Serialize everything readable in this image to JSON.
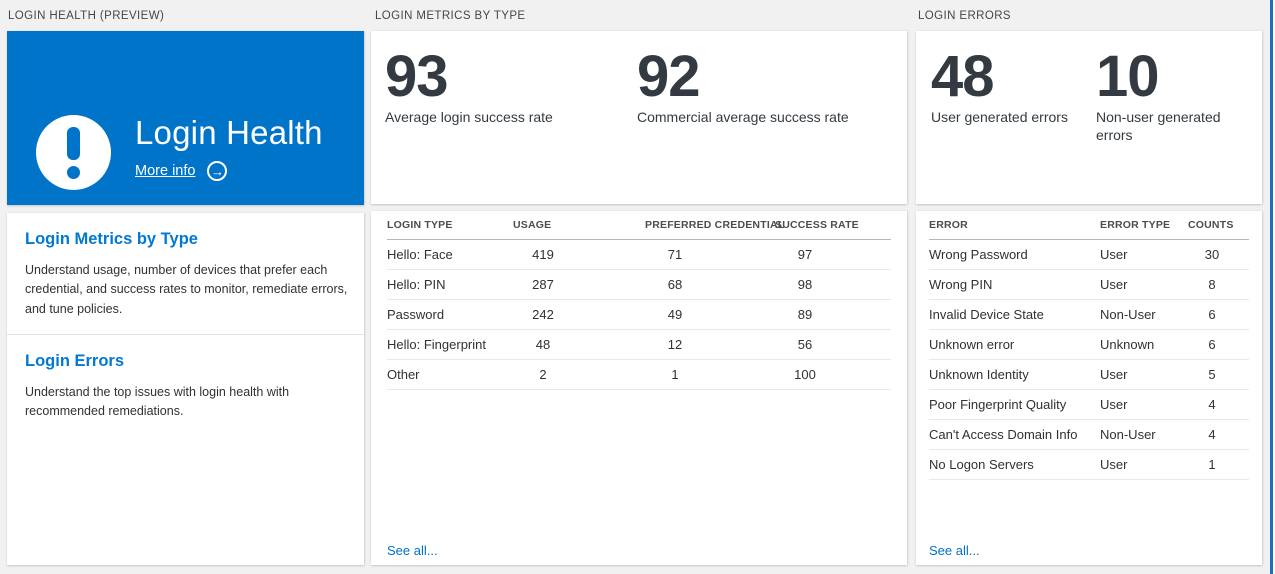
{
  "colors": {
    "page_background": "#f1f1f1",
    "hero_tile_blue": "#0074c9",
    "accent_blue": "#0078d4",
    "link_blue": "#0072c6",
    "blade_edge_blue": "#1e6fbd",
    "big_number_color": "#333a41"
  },
  "icons": {
    "hero": "exclamation-icon",
    "more_info_arrow": "arrow-right-circle-icon"
  },
  "health": {
    "header": "LOGIN HEALTH (PREVIEW)",
    "hero": {
      "title": "Login Health",
      "more_info_label": "More info",
      "arrow_glyph": "→"
    },
    "sections": [
      {
        "title": "Login Metrics by Type",
        "description": "Understand usage, number of devices that prefer each credential, and success rates to monitor, remediate errors, and tune policies."
      },
      {
        "title": "Login Errors",
        "description": "Understand the top issues with login health with recommended remediations."
      }
    ]
  },
  "metrics": {
    "header": "LOGIN METRICS BY TYPE",
    "stats": [
      {
        "value": "93",
        "label": "Average login success rate"
      },
      {
        "value": "92",
        "label": "Commercial average success rate"
      }
    ],
    "table": {
      "columns": [
        "LOGIN TYPE",
        "USAGE",
        "PREFERRED CREDENTIAL",
        "SUCCESS RATE"
      ],
      "rows": [
        [
          "Hello: Face",
          "419",
          "71",
          "97"
        ],
        [
          "Hello: PIN",
          "287",
          "68",
          "98"
        ],
        [
          "Password",
          "242",
          "49",
          "89"
        ],
        [
          "Hello: Fingerprint",
          "48",
          "12",
          "56"
        ],
        [
          "Other",
          "2",
          "1",
          "100"
        ]
      ]
    },
    "see_all_label": "See all..."
  },
  "errors": {
    "header": "LOGIN ERRORS",
    "stats": [
      {
        "value": "48",
        "label": "User generated errors"
      },
      {
        "value": "10",
        "label": "Non-user generated errors"
      }
    ],
    "table": {
      "columns": [
        "ERROR",
        "ERROR TYPE",
        "COUNTS"
      ],
      "rows": [
        [
          "Wrong Password",
          "User",
          "30"
        ],
        [
          "Wrong PIN",
          "User",
          "8"
        ],
        [
          "Invalid Device State",
          "Non-User",
          "6"
        ],
        [
          "Unknown error",
          "Unknown",
          "6"
        ],
        [
          "Unknown Identity",
          "User",
          "5"
        ],
        [
          "Poor Fingerprint Quality",
          "User",
          "4"
        ],
        [
          "Can't Access Domain Info",
          "Non-User",
          "4"
        ],
        [
          "No Logon Servers",
          "User",
          "1"
        ]
      ]
    },
    "see_all_label": "See all..."
  }
}
